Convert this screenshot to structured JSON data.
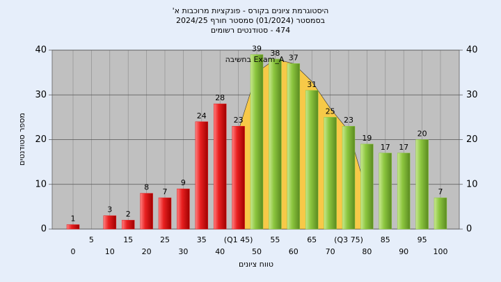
{
  "chart_data": {
    "type": "bar",
    "title": [
      "היסטוגרמת ציונים בקורס - פונקציות מרוכבות א'",
      "בסמסטר (01/2024) סמסטר חורף 2024/25",
      "474 - סטודנטים רשומים"
    ],
    "x_label": "טווח ציונים",
    "y_label": "מספר סטודנטים",
    "annotation": "בחשיבה Exam_A",
    "categories": [
      "0",
      "5",
      "10",
      "15",
      "20",
      "25",
      "30",
      "35",
      "40",
      "(Q1 45)",
      "50",
      "55",
      "60",
      "65",
      "70",
      "(Q3 75)",
      "80",
      "85",
      "90",
      "95",
      "100"
    ],
    "values": [
      1,
      null,
      3,
      2,
      8,
      7,
      9,
      24,
      28,
      23,
      39,
      38,
      37,
      31,
      25,
      23,
      19,
      17,
      17,
      20,
      7
    ],
    "colors": [
      "#e02020",
      "#e02020",
      "#e02020",
      "#e02020",
      "#e02020",
      "#e02020",
      "#e02020",
      "#e02020",
      "#e02020",
      "#e02020",
      "#8cc63f",
      "#8cc63f",
      "#8cc63f",
      "#8cc63f",
      "#8cc63f",
      "#8cc63f",
      "#8cc63f",
      "#8cc63f",
      "#8cc63f",
      "#8cc63f",
      "#8cc63f"
    ],
    "overlay": {
      "color": "#f7c948",
      "values": [
        null,
        null,
        null,
        null,
        null,
        null,
        null,
        null,
        null,
        22,
        35,
        38,
        37,
        33,
        27,
        22,
        8,
        null,
        null,
        null,
        null
      ]
    },
    "ylim": [
      0,
      40
    ],
    "yticks": [
      0,
      10,
      20,
      30,
      40
    ],
    "grid": true
  }
}
